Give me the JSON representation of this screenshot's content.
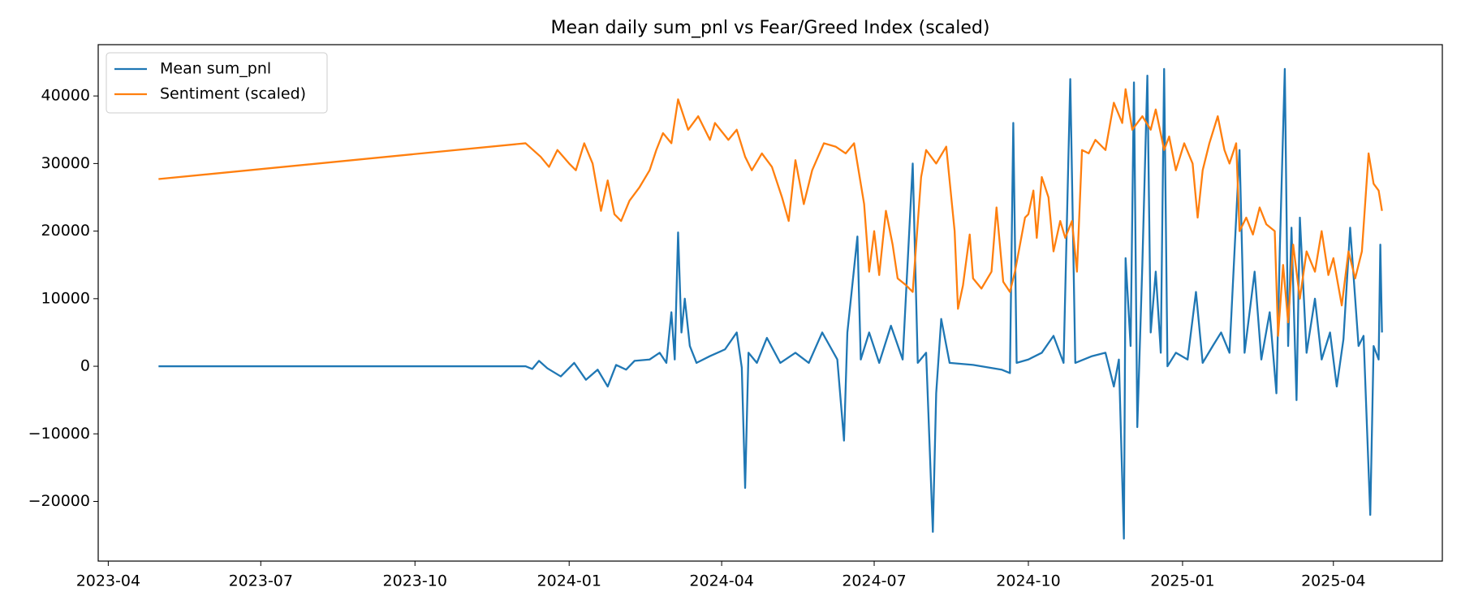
{
  "chart_data": {
    "type": "line",
    "title": "Mean daily sum_pnl vs Fear/Greed Index (scaled)",
    "xlim": [
      "2023-03-26",
      "2025-06-05"
    ],
    "xticks": [
      "2023-04",
      "2023-07",
      "2023-10",
      "2024-01",
      "2024-04",
      "2024-07",
      "2024-10",
      "2025-01",
      "2025-04"
    ],
    "ylim": [
      -28830,
      47590
    ],
    "yticks": [
      {
        "value": -20000,
        "label": "−20000"
      },
      {
        "value": -10000,
        "label": "−10000"
      },
      0,
      10000,
      20000,
      30000,
      40000
    ],
    "grid": false,
    "legend": "upper left",
    "series": [
      {
        "name": "Mean sum_pnl",
        "color": "#1f77b4",
        "x": [
          "2023-05-01",
          "2023-12-06",
          "2023-12-10",
          "2023-12-14",
          "2023-12-19",
          "2023-12-27",
          "2024-01-04",
          "2024-01-11",
          "2024-01-18",
          "2024-01-24",
          "2024-01-29",
          "2024-02-04",
          "2024-02-09",
          "2024-02-18",
          "2024-02-24",
          "2024-02-28",
          "2024-03-02",
          "2024-03-04",
          "2024-03-06",
          "2024-03-08",
          "2024-03-10",
          "2024-03-13",
          "2024-03-17",
          "2024-03-25",
          "2024-04-03",
          "2024-04-10",
          "2024-04-13",
          "2024-04-15",
          "2024-04-17",
          "2024-04-22",
          "2024-04-28",
          "2024-05-06",
          "2024-05-15",
          "2024-05-23",
          "2024-05-31",
          "2024-06-09",
          "2024-06-13",
          "2024-06-15",
          "2024-06-21",
          "2024-06-23",
          "2024-06-28",
          "2024-07-04",
          "2024-07-11",
          "2024-07-18",
          "2024-07-24",
          "2024-07-27",
          "2024-08-01",
          "2024-08-05",
          "2024-08-07",
          "2024-08-10",
          "2024-08-15",
          "2024-08-29",
          "2024-09-15",
          "2024-09-20",
          "2024-09-22",
          "2024-09-24",
          "2024-10-01",
          "2024-10-09",
          "2024-10-16",
          "2024-10-22",
          "2024-10-26",
          "2024-10-29",
          "2024-11-08",
          "2024-11-16",
          "2024-11-21",
          "2024-11-24",
          "2024-11-27",
          "2024-11-28",
          "2024-12-01",
          "2024-12-03",
          "2024-12-05",
          "2024-12-08",
          "2024-12-11",
          "2024-12-13",
          "2024-12-16",
          "2024-12-19",
          "2024-12-21",
          "2024-12-23",
          "2024-12-28",
          "2025-01-04",
          "2025-01-09",
          "2025-01-13",
          "2025-01-19",
          "2025-01-24",
          "2025-01-29",
          "2025-02-04",
          "2025-02-07",
          "2025-02-13",
          "2025-02-17",
          "2025-02-22",
          "2025-02-26",
          "2025-02-28",
          "2025-03-03",
          "2025-03-05",
          "2025-03-07",
          "2025-03-10",
          "2025-03-12",
          "2025-03-16",
          "2025-03-21",
          "2025-03-25",
          "2025-03-30",
          "2025-04-03",
          "2025-04-07",
          "2025-04-11",
          "2025-04-16",
          "2025-04-19",
          "2025-04-23",
          "2025-04-25",
          "2025-04-28",
          "2025-04-29",
          "2025-04-30"
        ],
        "values": [
          0,
          0,
          -400,
          800,
          -300,
          -1500,
          500,
          -2000,
          -500,
          -3000,
          200,
          -500,
          800,
          1000,
          2000,
          500,
          8000,
          1000,
          19800,
          5000,
          10000,
          3000,
          500,
          1500,
          2500,
          5000,
          -200,
          -18000,
          2000,
          500,
          4200,
          500,
          2000,
          500,
          5000,
          1000,
          -11000,
          5000,
          19200,
          1000,
          5000,
          500,
          6000,
          1000,
          30000,
          500,
          2000,
          -24500,
          -4000,
          7000,
          500,
          200,
          -500,
          -1000,
          36000,
          500,
          1000,
          2000,
          4500,
          500,
          42500,
          500,
          1500,
          2000,
          -3000,
          1000,
          -25500,
          16000,
          3000,
          42000,
          -9000,
          15000,
          43000,
          5000,
          14000,
          2000,
          44000,
          0,
          2000,
          1000,
          11000,
          500,
          3000,
          5000,
          2000,
          32000,
          2000,
          14000,
          1000,
          8000,
          -4000,
          17000,
          44000,
          3000,
          20500,
          -5000,
          22000,
          2000,
          10000,
          1000,
          5000,
          -3000,
          4000,
          20500,
          3000,
          4500,
          -22000,
          3000,
          1000,
          18000,
          5000
        ]
      },
      {
        "name": "Sentiment (scaled)",
        "color": "#ff7f0e",
        "x": [
          "2023-05-01",
          "2023-12-06",
          "2023-12-15",
          "2023-12-20",
          "2023-12-25",
          "2024-01-01",
          "2024-01-05",
          "2024-01-10",
          "2024-01-15",
          "2024-01-20",
          "2024-01-24",
          "2024-01-28",
          "2024-02-01",
          "2024-02-06",
          "2024-02-12",
          "2024-02-18",
          "2024-02-22",
          "2024-02-26",
          "2024-03-02",
          "2024-03-06",
          "2024-03-12",
          "2024-03-18",
          "2024-03-25",
          "2024-03-28",
          "2024-04-05",
          "2024-04-10",
          "2024-04-15",
          "2024-04-19",
          "2024-04-25",
          "2024-05-01",
          "2024-05-07",
          "2024-05-11",
          "2024-05-15",
          "2024-05-20",
          "2024-05-25",
          "2024-06-01",
          "2024-06-08",
          "2024-06-14",
          "2024-06-19",
          "2024-06-25",
          "2024-06-28",
          "2024-07-01",
          "2024-07-04",
          "2024-07-08",
          "2024-07-12",
          "2024-07-15",
          "2024-07-20",
          "2024-07-24",
          "2024-07-29",
          "2024-08-01",
          "2024-08-07",
          "2024-08-13",
          "2024-08-18",
          "2024-08-20",
          "2024-08-23",
          "2024-08-27",
          "2024-08-29",
          "2024-09-03",
          "2024-09-09",
          "2024-09-12",
          "2024-09-16",
          "2024-09-20",
          "2024-09-23",
          "2024-09-29",
          "2024-10-01",
          "2024-10-04",
          "2024-10-06",
          "2024-10-09",
          "2024-10-13",
          "2024-10-16",
          "2024-10-20",
          "2024-10-23",
          "2024-10-27",
          "2024-10-30",
          "2024-11-02",
          "2024-11-06",
          "2024-11-10",
          "2024-11-16",
          "2024-11-21",
          "2024-11-26",
          "2024-11-28",
          "2024-12-02",
          "2024-12-08",
          "2024-12-13",
          "2024-12-16",
          "2024-12-21",
          "2024-12-24",
          "2024-12-28",
          "2025-01-02",
          "2025-01-07",
          "2025-01-10",
          "2025-01-13",
          "2025-01-17",
          "2025-01-22",
          "2025-01-26",
          "2025-01-29",
          "2025-02-02",
          "2025-02-04",
          "2025-02-08",
          "2025-02-12",
          "2025-02-16",
          "2025-02-20",
          "2025-02-25",
          "2025-02-27",
          "2025-03-02",
          "2025-03-05",
          "2025-03-08",
          "2025-03-12",
          "2025-03-16",
          "2025-03-21",
          "2025-03-25",
          "2025-03-29",
          "2025-04-01",
          "2025-04-06",
          "2025-04-10",
          "2025-04-14",
          "2025-04-18",
          "2025-04-22",
          "2025-04-25",
          "2025-04-28",
          "2025-04-30"
        ],
        "values": [
          27700,
          33000,
          31000,
          29500,
          32000,
          30000,
          29000,
          33000,
          30000,
          23000,
          27500,
          22500,
          21500,
          24500,
          26500,
          29000,
          32000,
          34500,
          33000,
          39500,
          35000,
          37000,
          33500,
          36000,
          33500,
          35000,
          31000,
          29000,
          31500,
          29500,
          25000,
          21500,
          30500,
          24000,
          29000,
          33000,
          32500,
          31500,
          33000,
          24000,
          14000,
          20000,
          13500,
          23000,
          18000,
          13000,
          12000,
          11000,
          28000,
          32000,
          30000,
          32500,
          20000,
          8500,
          12000,
          19500,
          13000,
          11500,
          14000,
          23500,
          12500,
          11000,
          14000,
          22000,
          22500,
          26000,
          19000,
          28000,
          25000,
          17000,
          21500,
          19000,
          21500,
          14000,
          32000,
          31500,
          33500,
          32000,
          39000,
          36000,
          41000,
          35000,
          37000,
          35000,
          38000,
          32000,
          34000,
          29000,
          33000,
          30000,
          22000,
          29000,
          33000,
          37000,
          32000,
          30000,
          33000,
          20000,
          22000,
          19500,
          23500,
          21000,
          20000,
          4500,
          15000,
          6500,
          18000,
          10000,
          17000,
          14000,
          20000,
          13500,
          16000,
          9000,
          17000,
          13000,
          17000,
          31500,
          27000,
          26000,
          23000
        ]
      }
    ]
  }
}
